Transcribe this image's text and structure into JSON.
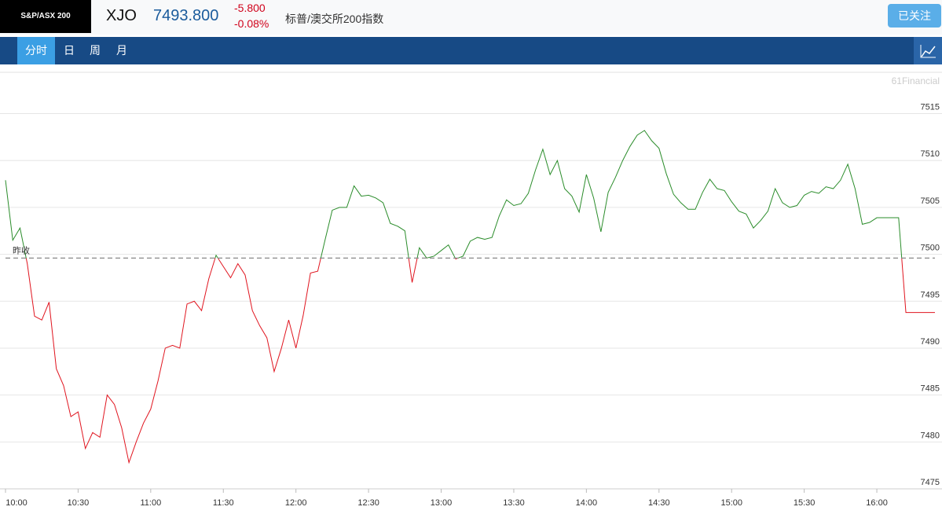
{
  "header": {
    "logo": "S&P/ASX 200",
    "symbol": "XJO",
    "price": "7493.800",
    "change": "-5.800",
    "change_pct": "-0.08%",
    "name": "标普/澳交所200指数",
    "follow_button": "已关注"
  },
  "tabs": [
    "分时",
    "日",
    "周",
    "月"
  ],
  "chart_data": {
    "type": "line",
    "watermark": "61Financial",
    "reference": {
      "label": "昨收",
      "value": 7499.6
    },
    "x": [
      "10:00",
      "10:03",
      "10:06",
      "10:09",
      "10:12",
      "10:15",
      "10:18",
      "10:21",
      "10:24",
      "10:27",
      "10:30",
      "10:33",
      "10:36",
      "10:39",
      "10:42",
      "10:45",
      "10:48",
      "10:51",
      "10:54",
      "10:57",
      "11:00",
      "11:03",
      "11:06",
      "11:09",
      "11:12",
      "11:15",
      "11:18",
      "11:21",
      "11:24",
      "11:27",
      "11:30",
      "11:33",
      "11:36",
      "11:39",
      "11:42",
      "11:45",
      "11:48",
      "11:51",
      "11:54",
      "11:57",
      "12:00",
      "12:03",
      "12:06",
      "12:09",
      "12:12",
      "12:15",
      "12:18",
      "12:21",
      "12:24",
      "12:27",
      "12:30",
      "12:33",
      "12:36",
      "12:39",
      "12:42",
      "12:45",
      "12:48",
      "12:51",
      "12:54",
      "12:57",
      "13:00",
      "13:03",
      "13:06",
      "13:09",
      "13:12",
      "13:15",
      "13:18",
      "13:21",
      "13:24",
      "13:27",
      "13:30",
      "13:33",
      "13:36",
      "13:39",
      "13:42",
      "13:45",
      "13:48",
      "13:51",
      "13:54",
      "13:57",
      "14:00",
      "14:03",
      "14:06",
      "14:09",
      "14:12",
      "14:15",
      "14:18",
      "14:21",
      "14:24",
      "14:27",
      "14:30",
      "14:33",
      "14:36",
      "14:39",
      "14:42",
      "14:45",
      "14:48",
      "14:51",
      "14:54",
      "14:57",
      "15:00",
      "15:03",
      "15:06",
      "15:09",
      "15:12",
      "15:15",
      "15:18",
      "15:21",
      "15:24",
      "15:27",
      "15:30",
      "15:33",
      "15:36",
      "15:39",
      "15:42",
      "15:45",
      "15:48",
      "15:51",
      "15:54",
      "15:57",
      "16:00",
      "16:03",
      "16:06",
      "16:09",
      "16:12",
      "16:15",
      "16:18",
      "16:21",
      "16:24"
    ],
    "series": [
      {
        "colors": {
          "above": "#2a8c2a",
          "below": "#e0141e"
        },
        "values": [
          7507.9,
          7501.5,
          7502.8,
          7499,
          7493.4,
          7493,
          7494.9,
          7487.8,
          7486,
          7482.7,
          7483.2,
          7479.3,
          7481,
          7480.5,
          7485,
          7484,
          7481.5,
          7477.8,
          7480,
          7482,
          7483.5,
          7486.5,
          7490,
          7490.3,
          7490,
          7494.7,
          7495,
          7494,
          7497.4,
          7499.9,
          7498.7,
          7497.5,
          7499,
          7497.8,
          7494,
          7492.4,
          7491.1,
          7487.5,
          7490,
          7493,
          7490,
          7493.5,
          7498,
          7498.2,
          7501.5,
          7504.7,
          7505,
          7505,
          7507.3,
          7506.2,
          7506.3,
          7506,
          7505.5,
          7503.3,
          7503,
          7502.5,
          7497,
          7500.7,
          7499.6,
          7499.8,
          7500.4,
          7501,
          7499.5,
          7499.8,
          7501.4,
          7501.8,
          7501.6,
          7501.8,
          7504.1,
          7505.8,
          7505.2,
          7505.4,
          7506.5,
          7509,
          7511.2,
          7508.5,
          7510,
          7507,
          7506.2,
          7504.5,
          7508.5,
          7506,
          7502.4,
          7506.6,
          7508.2,
          7510,
          7511.5,
          7512.7,
          7513.2,
          7512.1,
          7511.3,
          7508.6,
          7506.4,
          7505.5,
          7504.8,
          7504.8,
          7506.6,
          7508,
          7507,
          7506.8,
          7505.6,
          7504.6,
          7504.3,
          7502.8,
          7503.6,
          7504.6,
          7507,
          7505.5,
          7505,
          7505.2,
          7506.3,
          7506.7,
          7506.5,
          7507.2,
          7507,
          7507.9,
          7509.6,
          7507,
          7503.2,
          7503.4,
          7503.9,
          7503.9,
          7503.9,
          7503.9,
          7493.8,
          7493.8,
          7493.8,
          7493.8,
          7493.8
        ]
      }
    ],
    "xlim": [
      "10:00",
      "16:24"
    ],
    "xticks": [
      "10:00",
      "10:30",
      "11:00",
      "11:30",
      "12:00",
      "12:30",
      "13:00",
      "13:30",
      "14:00",
      "14:30",
      "15:00",
      "15:30",
      "16:00"
    ],
    "ylim": [
      7475,
      7519.4
    ],
    "yticks": [
      7475,
      7480,
      7485,
      7490,
      7495,
      7500,
      7505,
      7510,
      7515
    ],
    "grid": true
  }
}
